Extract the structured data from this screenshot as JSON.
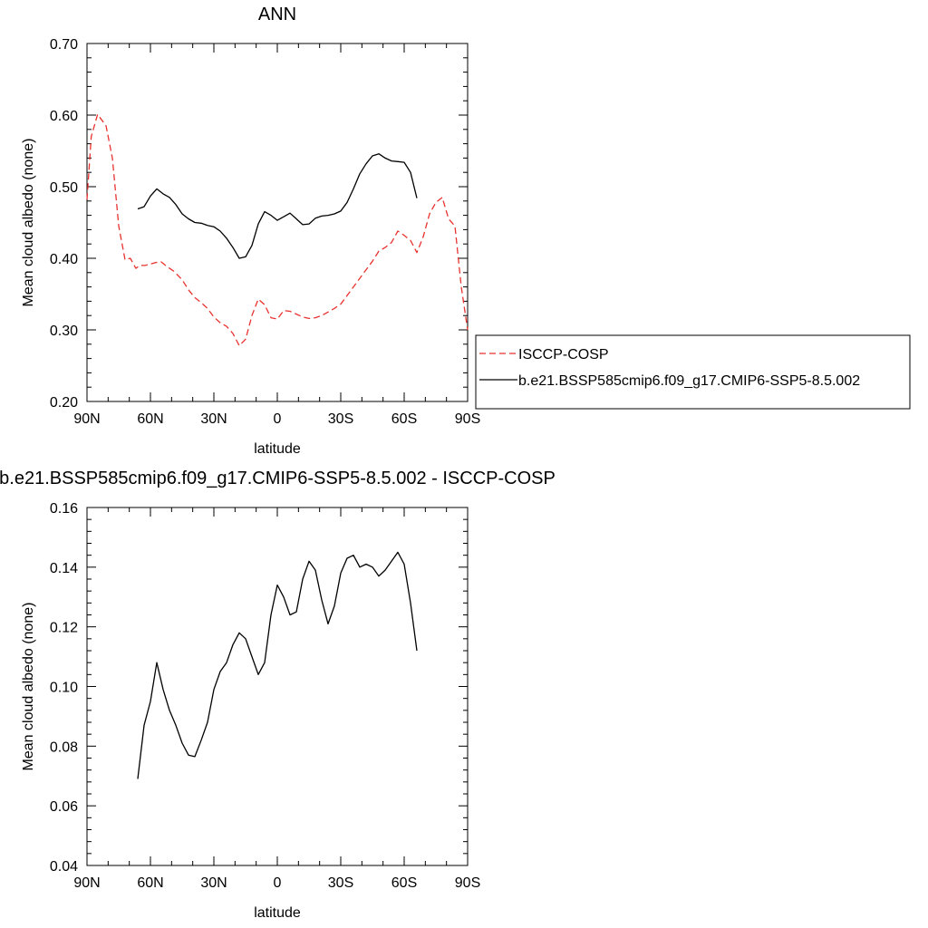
{
  "chart_data": [
    {
      "type": "line",
      "title": "ANN",
      "xlabel": "latitude",
      "ylabel": "Mean cloud albedo (none)",
      "xlim": [
        90,
        -90
      ],
      "ylim": [
        0.2,
        0.7
      ],
      "x_ticks": [
        90,
        60,
        30,
        0,
        -30,
        -60,
        -90
      ],
      "x_tick_labels": [
        "90N",
        "60N",
        "30N",
        "0",
        "30S",
        "60S",
        "90S"
      ],
      "y_ticks": [
        0.2,
        0.3,
        0.4,
        0.5,
        0.6,
        0.7
      ],
      "y_tick_labels": [
        "0.20",
        "0.30",
        "0.40",
        "0.50",
        "0.60",
        "0.70"
      ],
      "legend_position": "right",
      "grid": false,
      "series": [
        {
          "name": "ISCCP-COSP",
          "color": "#e8322f",
          "dash": "dashed",
          "x": [
            90.0,
            88.0,
            85.0,
            81.0,
            78.0,
            75.0,
            72.0,
            69.5,
            66.9,
            65.0,
            62.5,
            60.0,
            57.5,
            55.0,
            52.4,
            49.0,
            45.0,
            42.0,
            39.0,
            36.0,
            33.0,
            30.0,
            27.0,
            24.0,
            21.0,
            18.0,
            15.0,
            12.0,
            9.0,
            6.0,
            3.0,
            0.0,
            -3.0,
            -6.0,
            -9.0,
            -12.0,
            -15.0,
            -18.0,
            -21.0,
            -24.0,
            -27.0,
            -30.0,
            -33.0,
            -36.0,
            -39.0,
            -42.0,
            -45.0,
            -48.0,
            -51.0,
            -54.0,
            -57.0,
            -60.0,
            -63.0,
            -66.0,
            -69.0,
            -72.0,
            -75.0,
            -78.0,
            -81.0,
            -84.0,
            -87.0,
            -90.0
          ],
          "y": [
            0.482,
            0.57,
            0.601,
            0.585,
            0.54,
            0.445,
            0.398,
            0.4,
            0.386,
            0.39,
            0.39,
            0.392,
            0.394,
            0.395,
            0.389,
            0.382,
            0.37,
            0.356,
            0.345,
            0.338,
            0.33,
            0.318,
            0.31,
            0.305,
            0.295,
            0.278,
            0.287,
            0.32,
            0.343,
            0.335,
            0.317,
            0.315,
            0.327,
            0.326,
            0.322,
            0.318,
            0.316,
            0.317,
            0.32,
            0.325,
            0.33,
            0.336,
            0.348,
            0.36,
            0.372,
            0.384,
            0.396,
            0.41,
            0.415,
            0.422,
            0.438,
            0.432,
            0.425,
            0.408,
            0.43,
            0.462,
            0.478,
            0.485,
            0.455,
            0.445,
            0.36,
            0.3
          ]
        },
        {
          "name": "b.e21.BSSP585cmip6.f09_g17.CMIP6-SSP5-8.5.002",
          "color": "#000000",
          "dash": "solid",
          "x": [
            66.0,
            63.0,
            60.0,
            57.0,
            54.0,
            51.0,
            48.0,
            45.0,
            42.0,
            39.0,
            36.0,
            33.0,
            30.0,
            27.0,
            24.0,
            21.0,
            18.0,
            15.0,
            12.0,
            9.0,
            6.0,
            3.0,
            0.0,
            -3.0,
            -6.0,
            -9.0,
            -12.0,
            -15.0,
            -18.0,
            -21.0,
            -24.0,
            -27.0,
            -30.0,
            -33.0,
            -36.0,
            -39.0,
            -42.0,
            -45.0,
            -48.0,
            -51.0,
            -54.0,
            -57.0,
            -60.0,
            -63.0,
            -66.0
          ],
          "y": [
            0.469,
            0.472,
            0.487,
            0.497,
            0.49,
            0.485,
            0.475,
            0.462,
            0.455,
            0.45,
            0.449,
            0.446,
            0.444,
            0.438,
            0.428,
            0.415,
            0.4,
            0.402,
            0.418,
            0.448,
            0.465,
            0.46,
            0.453,
            0.458,
            0.463,
            0.455,
            0.447,
            0.448,
            0.456,
            0.459,
            0.46,
            0.462,
            0.466,
            0.478,
            0.497,
            0.518,
            0.532,
            0.543,
            0.546,
            0.54,
            0.536,
            0.535,
            0.534,
            0.52,
            0.484
          ]
        }
      ]
    },
    {
      "type": "line",
      "title": "b.e21.BSSP585cmip6.f09_g17.CMIP6-SSP5-8.5.002 - ISCCP-COSP",
      "xlabel": "latitude",
      "ylabel": "Mean cloud albedo (none)",
      "xlim": [
        90,
        -90
      ],
      "ylim": [
        0.04,
        0.16
      ],
      "x_ticks": [
        90,
        60,
        30,
        0,
        -30,
        -60,
        -90
      ],
      "x_tick_labels": [
        "90N",
        "60N",
        "30N",
        "0",
        "30S",
        "60S",
        "90S"
      ],
      "y_ticks": [
        0.04,
        0.06,
        0.08,
        0.1,
        0.12,
        0.14,
        0.16
      ],
      "y_tick_labels": [
        "0.04",
        "0.06",
        "0.08",
        "0.10",
        "0.12",
        "0.14",
        "0.16"
      ],
      "grid": false,
      "series": [
        {
          "color": "#000000",
          "dash": "solid",
          "x": [
            66.0,
            63.0,
            60.0,
            57.0,
            54.0,
            51.0,
            48.0,
            45.0,
            42.0,
            39.0,
            36.0,
            33.0,
            30.0,
            27.0,
            24.0,
            21.0,
            18.0,
            15.0,
            12.0,
            9.0,
            6.0,
            3.0,
            0.0,
            -3.0,
            -6.0,
            -9.0,
            -12.0,
            -15.0,
            -18.0,
            -21.0,
            -24.0,
            -27.0,
            -30.0,
            -33.0,
            -36.0,
            -39.0,
            -42.0,
            -45.0,
            -48.0,
            -51.0,
            -54.0,
            -57.0,
            -60.0,
            -63.0,
            -66.0
          ],
          "y": [
            0.069,
            0.087,
            0.095,
            0.108,
            0.099,
            0.092,
            0.087,
            0.081,
            0.077,
            0.0765,
            0.082,
            0.088,
            0.099,
            0.105,
            0.108,
            0.114,
            0.118,
            0.116,
            0.11,
            0.104,
            0.108,
            0.124,
            0.134,
            0.13,
            0.124,
            0.125,
            0.136,
            0.142,
            0.139,
            0.129,
            0.121,
            0.127,
            0.138,
            0.143,
            0.144,
            0.14,
            0.141,
            0.14,
            0.137,
            0.139,
            0.142,
            0.145,
            0.141,
            0.128,
            0.112
          ]
        }
      ]
    }
  ]
}
